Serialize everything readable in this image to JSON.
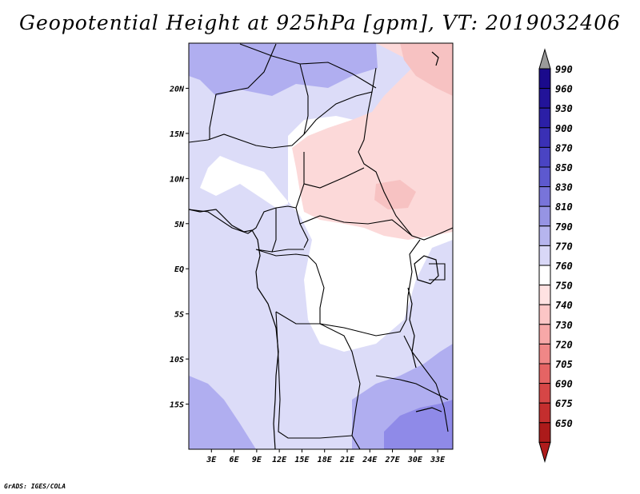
{
  "title": "Geopotential Height at 925hPa [gpm], VT: 2019032406",
  "credit": "GrADS: IGES/COLA",
  "map": {
    "region": "Central Africa",
    "lon_range": [
      0,
      35
    ],
    "lat_range": [
      -20,
      25
    ],
    "lat_ticks": [
      {
        "value": 20,
        "label": "20N"
      },
      {
        "value": 15,
        "label": "15N"
      },
      {
        "value": 10,
        "label": "10N"
      },
      {
        "value": 5,
        "label": "5N"
      },
      {
        "value": 0,
        "label": "EQ"
      },
      {
        "value": -5,
        "label": "5S"
      },
      {
        "value": -10,
        "label": "10S"
      },
      {
        "value": -15,
        "label": "15S"
      }
    ],
    "lon_ticks": [
      {
        "value": 3,
        "label": "3E"
      },
      {
        "value": 6,
        "label": "6E"
      },
      {
        "value": 9,
        "label": "9E"
      },
      {
        "value": 12,
        "label": "12E"
      },
      {
        "value": 15,
        "label": "15E"
      },
      {
        "value": 18,
        "label": "18E"
      },
      {
        "value": 21,
        "label": "21E"
      },
      {
        "value": 24,
        "label": "24E"
      },
      {
        "value": 27,
        "label": "27E"
      },
      {
        "value": 30,
        "label": "30E"
      },
      {
        "value": 33,
        "label": "33E"
      }
    ]
  },
  "colorbar": {
    "levels": [
      {
        "label": "990",
        "color": "#1a0a8c"
      },
      {
        "label": "960",
        "color": "#221399"
      },
      {
        "label": "930",
        "color": "#2b1fa6"
      },
      {
        "label": "900",
        "color": "#3a30b5"
      },
      {
        "label": "870",
        "color": "#4a44c3"
      },
      {
        "label": "850",
        "color": "#5d59cf"
      },
      {
        "label": "830",
        "color": "#7874da"
      },
      {
        "label": "810",
        "color": "#9694e4"
      },
      {
        "label": "790",
        "color": "#b6b5ee"
      },
      {
        "label": "770",
        "color": "#d9d8f7"
      },
      {
        "label": "760",
        "color": "#ffffff"
      },
      {
        "label": "750",
        "color": "#ffe2e2"
      },
      {
        "label": "740",
        "color": "#fcc6c6"
      },
      {
        "label": "730",
        "color": "#f7a8a8"
      },
      {
        "label": "720",
        "color": "#f08787"
      },
      {
        "label": "705",
        "color": "#e56464"
      },
      {
        "label": "690",
        "color": "#d64646"
      },
      {
        "label": "675",
        "color": "#c42e2e"
      },
      {
        "label": "650",
        "color": "#ac1a1a"
      }
    ],
    "top_arrow_color": "#9a9a9a",
    "bottom_arrow_color": "#b01c1c"
  },
  "colors": {
    "sea": "#d5d5f6",
    "land_base": "#dcdcf8",
    "white_band": "#ffffff",
    "pink": "#fcd9d9",
    "pink_dark": "#f7c2c2",
    "purple_mid": "#b0aef0",
    "purple_dark": "#8f8ae8",
    "boundary": "#000000"
  }
}
